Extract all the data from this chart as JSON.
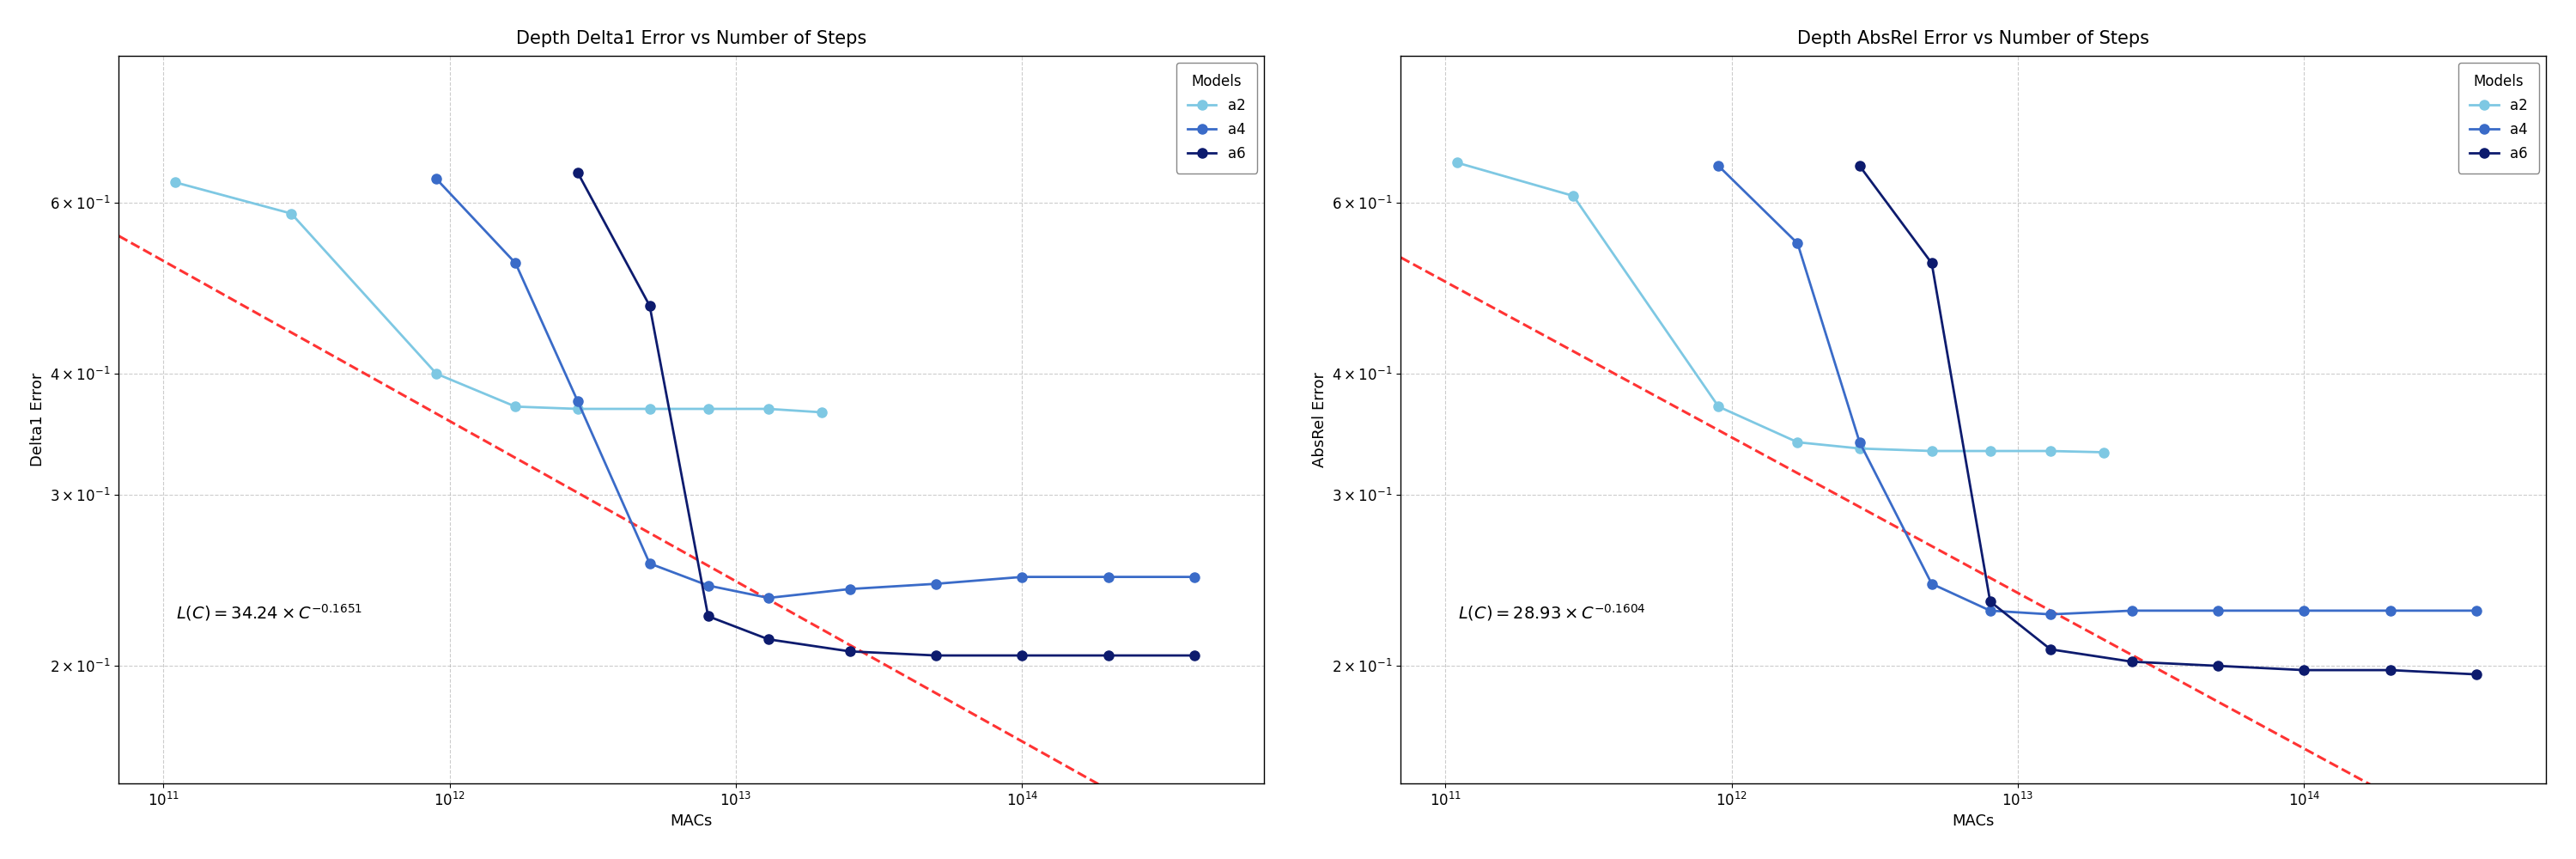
{
  "plot1": {
    "title": "Depth Delta1 Error vs Number of Steps",
    "ylabel": "Delta1 Error",
    "xlabel": "MACs",
    "scaling_coeff": 34.24,
    "scaling_exp": -0.1651,
    "scaling_text": "$L(C) = 34.24 \\times C^{-0.1651}$",
    "ylim_log": [
      -0.82,
      -0.07
    ],
    "xlim": [
      70000000000.0,
      700000000000000.0
    ],
    "a2_x": [
      110000000000.0,
      280000000000.0,
      900000000000.0,
      1700000000000.0,
      2800000000000.0,
      5000000000000.0,
      8000000000000.0,
      13000000000000.0,
      20000000000000.0
    ],
    "a2_y": [
      0.63,
      0.585,
      0.4,
      0.37,
      0.368,
      0.368,
      0.368,
      0.368,
      0.365
    ],
    "a4_x": [
      900000000000.0,
      1700000000000.0,
      2800000000000.0,
      5000000000000.0,
      8000000000000.0,
      13000000000000.0,
      25000000000000.0,
      50000000000000.0,
      100000000000000.0,
      200000000000000.0,
      400000000000000.0
    ],
    "a4_y": [
      0.635,
      0.52,
      0.375,
      0.255,
      0.242,
      0.235,
      0.24,
      0.243,
      0.247,
      0.247,
      0.247
    ],
    "a6_x": [
      2800000000000.0,
      5000000000000.0,
      8000000000000.0,
      13000000000000.0,
      25000000000000.0,
      50000000000000.0,
      100000000000000.0,
      200000000000000.0,
      400000000000000.0
    ],
    "a6_y": [
      0.645,
      0.47,
      0.225,
      0.213,
      0.207,
      0.205,
      0.205,
      0.205,
      0.205
    ]
  },
  "plot2": {
    "title": "Depth AbsRel Error vs Number of Steps",
    "ylabel": "AbsRel Error",
    "xlabel": "MACs",
    "scaling_coeff": 28.93,
    "scaling_exp": -0.1604,
    "scaling_text": "$L(C) = 28.93 \\times C^{-0.1604}$",
    "ylim_log": [
      -0.82,
      -0.07
    ],
    "xlim": [
      70000000000.0,
      700000000000000.0
    ],
    "a2_x": [
      110000000000.0,
      280000000000.0,
      900000000000.0,
      1700000000000.0,
      2800000000000.0,
      5000000000000.0,
      8000000000000.0,
      13000000000000.0,
      20000000000000.0
    ],
    "a2_y": [
      0.66,
      0.61,
      0.37,
      0.34,
      0.335,
      0.333,
      0.333,
      0.333,
      0.332
    ],
    "a4_x": [
      900000000000.0,
      1700000000000.0,
      2800000000000.0,
      5000000000000.0,
      8000000000000.0,
      13000000000000.0,
      25000000000000.0,
      50000000000000.0,
      100000000000000.0,
      200000000000000.0,
      400000000000000.0
    ],
    "a4_y": [
      0.655,
      0.545,
      0.34,
      0.243,
      0.228,
      0.226,
      0.228,
      0.228,
      0.228,
      0.228,
      0.228
    ],
    "a6_x": [
      2800000000000.0,
      5000000000000.0,
      8000000000000.0,
      13000000000000.0,
      25000000000000.0,
      50000000000000.0,
      100000000000000.0,
      200000000000000.0,
      400000000000000.0
    ],
    "a6_y": [
      0.655,
      0.52,
      0.233,
      0.208,
      0.202,
      0.2,
      0.198,
      0.198,
      0.196
    ]
  },
  "color_a2": "#7EC8E3",
  "color_a4": "#3A6BC8",
  "color_a6": "#0D1B6E",
  "dashed_color": "#FF3333",
  "bg_color": "#FFFFFF",
  "grid_color": "#AAAAAA",
  "title_fontsize": 15,
  "label_fontsize": 13,
  "tick_fontsize": 12,
  "legend_fontsize": 12,
  "annotation_fontsize": 14,
  "marker_size": 8,
  "line_width": 2.0
}
